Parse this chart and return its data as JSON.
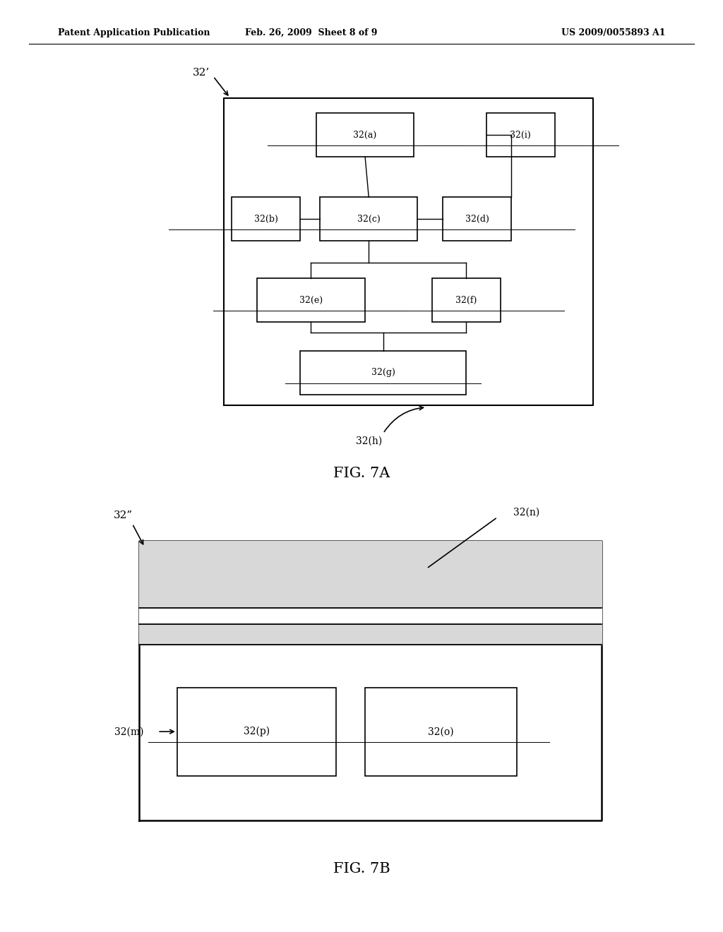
{
  "bg_color": "#ffffff",
  "header_left": "Patent Application Publication",
  "header_mid": "Feb. 26, 2009  Sheet 8 of 9",
  "header_right": "US 2009/0055893 A1",
  "fig7a_label": "FIG. 7A",
  "fig7b_label": "FIG. 7B",
  "fig7a_ref": "32’",
  "fig7b_ref": "32”",
  "fig7a_h_ref": "32(h)",
  "fig7b_n_ref": "32(n)",
  "fig7b_m_ref": "32(m)"
}
